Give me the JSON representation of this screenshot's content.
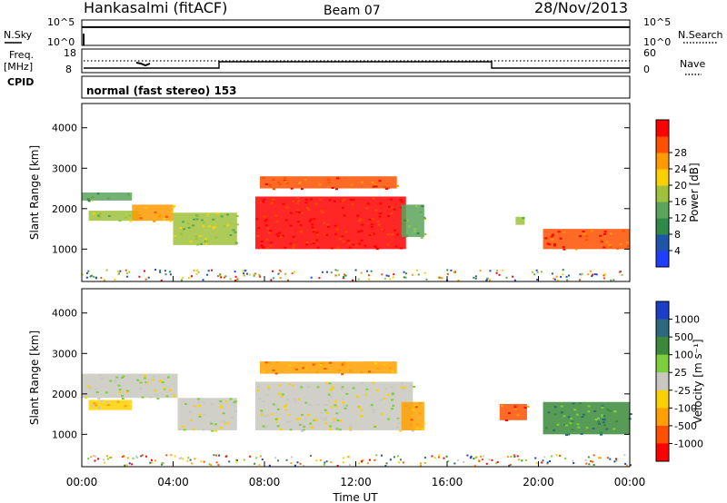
{
  "header": {
    "station": "Hankasalmi (fitACF)",
    "beam": "Beam 07",
    "date": "28/Nov/2013"
  },
  "status_panel": {
    "left_label": "N.Sky",
    "right_label": "N.Search",
    "left_ticks": [
      "10^5",
      "10^0"
    ],
    "right_ticks": [
      "10^5",
      "10^0"
    ],
    "nsky_level": 0.72
  },
  "freq_panel": {
    "label_top": "Freq.",
    "label_unit": "[MHz]",
    "cpid_label": "CPID",
    "nave_label": "Nave",
    "left_ticks": [
      "18",
      "8"
    ],
    "right_ticks": [
      "60",
      "0"
    ]
  },
  "mode_text": "normal (fast stereo) 153",
  "time_axis": {
    "title": "Time UT",
    "ticks": [
      "00:00",
      "04:00",
      "08:00",
      "12:00",
      "16:00",
      "20:00",
      "00:00"
    ]
  },
  "chart_data": [
    {
      "type": "heatmap",
      "title": "",
      "xlabel": "Time UT",
      "ylabel": "Slant Range [km]",
      "ylim": [
        200,
        4600
      ],
      "xlim_hours": [
        0,
        24
      ],
      "yticks": [
        1000,
        2000,
        3000,
        4000
      ],
      "colorbar": {
        "label": "Power [dB]",
        "ticks": [
          "4",
          "8",
          "12",
          "16",
          "20",
          "24",
          "28"
        ],
        "colors": [
          "#1f3fff",
          "#1d55a8",
          "#2f8a4a",
          "#5aa55a",
          "#9fc23c",
          "#ffd000",
          "#ff9a00",
          "#ff5000",
          "#ff0000"
        ]
      },
      "regions": [
        {
          "t": [
            0.0,
            2.2
          ],
          "r": [
            2200,
            2400
          ],
          "level": 3
        },
        {
          "t": [
            0.3,
            2.5
          ],
          "r": [
            1700,
            1950
          ],
          "level": 4
        },
        {
          "t": [
            2.2,
            4.0
          ],
          "r": [
            1700,
            2100
          ],
          "level": 6
        },
        {
          "t": [
            4.0,
            6.8
          ],
          "r": [
            1100,
            1900
          ],
          "level": 4
        },
        {
          "t": [
            7.6,
            14.2
          ],
          "r": [
            1000,
            2300
          ],
          "level": 8
        },
        {
          "t": [
            7.8,
            13.8
          ],
          "r": [
            2500,
            2800
          ],
          "level": 7
        },
        {
          "t": [
            14.0,
            15.0
          ],
          "r": [
            1300,
            2100
          ],
          "level": 3
        },
        {
          "t": [
            19.0,
            19.4
          ],
          "r": [
            1600,
            1800
          ],
          "level": 4
        },
        {
          "t": [
            20.2,
            24.0
          ],
          "r": [
            1000,
            1500
          ],
          "level": 7
        }
      ]
    },
    {
      "type": "heatmap",
      "title": "",
      "xlabel": "Time UT",
      "ylabel": "Slant Range [km]",
      "ylim": [
        200,
        4600
      ],
      "xlim_hours": [
        0,
        24
      ],
      "yticks": [
        1000,
        2000,
        3000,
        4000
      ],
      "colorbar": {
        "label": "Velocity [m s⁻¹]",
        "ticks": [
          "1000",
          "500",
          "100",
          "25",
          "-25",
          "-100",
          "-500",
          "-1000"
        ],
        "colors": [
          "#1a3ec8",
          "#2a6a7a",
          "#3a8a3a",
          "#7ccf3a",
          "#c8c8c0",
          "#ffd000",
          "#ffa000",
          "#ff5000",
          "#ff0000"
        ]
      },
      "regions": [
        {
          "t": [
            0.0,
            4.2
          ],
          "r": [
            1900,
            2500
          ],
          "level": 4
        },
        {
          "t": [
            0.3,
            2.2
          ],
          "r": [
            1600,
            1850
          ],
          "level": 5
        },
        {
          "t": [
            4.2,
            6.8
          ],
          "r": [
            1100,
            1900
          ],
          "level": 4
        },
        {
          "t": [
            7.6,
            14.5
          ],
          "r": [
            1100,
            2300
          ],
          "level": 4
        },
        {
          "t": [
            7.8,
            13.8
          ],
          "r": [
            2500,
            2800
          ],
          "level": 6
        },
        {
          "t": [
            14.0,
            15.0
          ],
          "r": [
            1100,
            1800
          ],
          "level": 6
        },
        {
          "t": [
            18.3,
            19.5
          ],
          "r": [
            1350,
            1750
          ],
          "level": 7
        },
        {
          "t": [
            20.2,
            24.0
          ],
          "r": [
            1000,
            1800
          ],
          "level": 2
        }
      ]
    }
  ]
}
